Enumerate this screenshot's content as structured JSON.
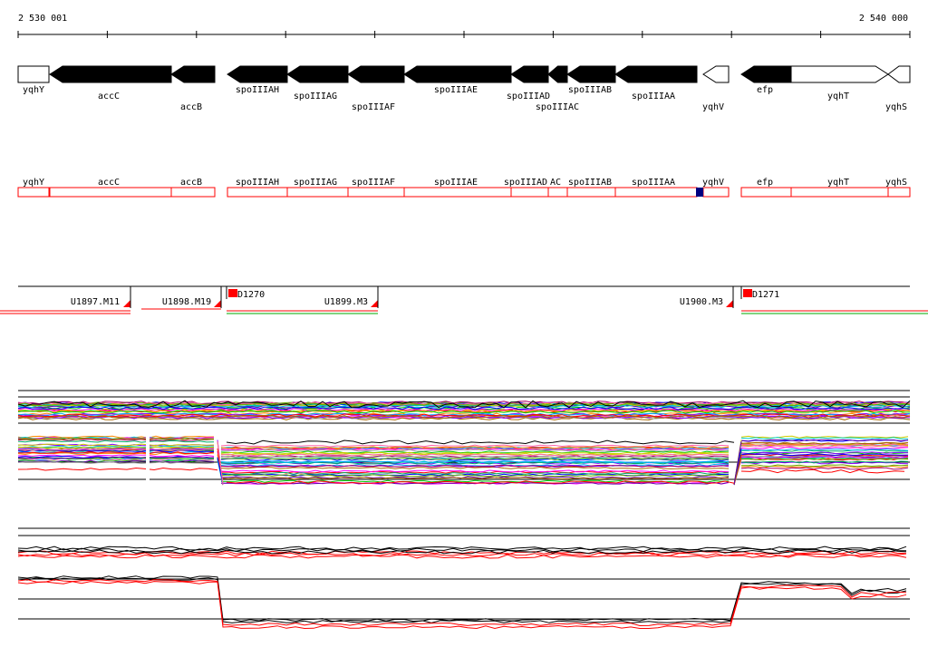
{
  "coordinates": {
    "start": "2 530 001",
    "end": "2 540 000"
  },
  "genes": [
    {
      "name": "yqhY",
      "strand": "+",
      "fill": "white",
      "row": "upper"
    },
    {
      "name": "accC",
      "strand": "-",
      "fill": "black",
      "row": "lower"
    },
    {
      "name": "accB",
      "strand": "-",
      "fill": "black",
      "row": "lower2"
    },
    {
      "name": "spoIIIAH",
      "strand": "-",
      "fill": "black",
      "row": "upper"
    },
    {
      "name": "spoIIIAG",
      "strand": "-",
      "fill": "black",
      "row": "lower"
    },
    {
      "name": "spoIIIAF",
      "strand": "-",
      "fill": "black",
      "row": "lower2"
    },
    {
      "name": "spoIIIAE",
      "strand": "-",
      "fill": "black",
      "row": "upper"
    },
    {
      "name": "spoIIIAD",
      "strand": "-",
      "fill": "black",
      "row": "lower"
    },
    {
      "name": "spoIIIAC",
      "strand": "-",
      "fill": "black",
      "row": "lower2"
    },
    {
      "name": "spoIIIAB",
      "strand": "-",
      "fill": "black",
      "row": "upper"
    },
    {
      "name": "spoIIIAA",
      "strand": "-",
      "fill": "black",
      "row": "lower"
    },
    {
      "name": "yqhV",
      "strand": "-",
      "fill": "white",
      "row": "lower2"
    },
    {
      "name": "efp",
      "strand": "-",
      "fill": "black",
      "row": "upper"
    },
    {
      "name": "yqhT",
      "strand": "+",
      "fill": "white",
      "row": "upper"
    },
    {
      "name": "yqhS",
      "strand": "-",
      "fill": "white",
      "row": "lower2"
    }
  ],
  "gene_boxes": [
    {
      "name": "yqhY"
    },
    {
      "name": "accC"
    },
    {
      "name": "accB"
    },
    {
      "name": "spoIIIAH"
    },
    {
      "name": "spoIIIAG"
    },
    {
      "name": "spoIIIAF"
    },
    {
      "name": "spoIIIAE"
    },
    {
      "name": "spoIIIAD"
    },
    {
      "name": "AC"
    },
    {
      "name": "spoIIIAB"
    },
    {
      "name": "spoIIIAA"
    },
    {
      "name": "yqhV"
    },
    {
      "name": "efp"
    },
    {
      "name": "yqhT"
    },
    {
      "name": "yqhS"
    }
  ],
  "operons": [
    {
      "label": "U1897.M11"
    },
    {
      "label": "U1898.M19"
    },
    {
      "label": "D1270"
    },
    {
      "label": "U1899.M3"
    },
    {
      "label": "U1900.M3"
    },
    {
      "label": "D1271"
    }
  ],
  "colors": {
    "gene_fill": "#000000",
    "box_outline": "#ff0000",
    "marker": "#ff0000",
    "highlight": "#000080",
    "strand_red": "#ff0000",
    "strand_green": "#00aa00"
  }
}
